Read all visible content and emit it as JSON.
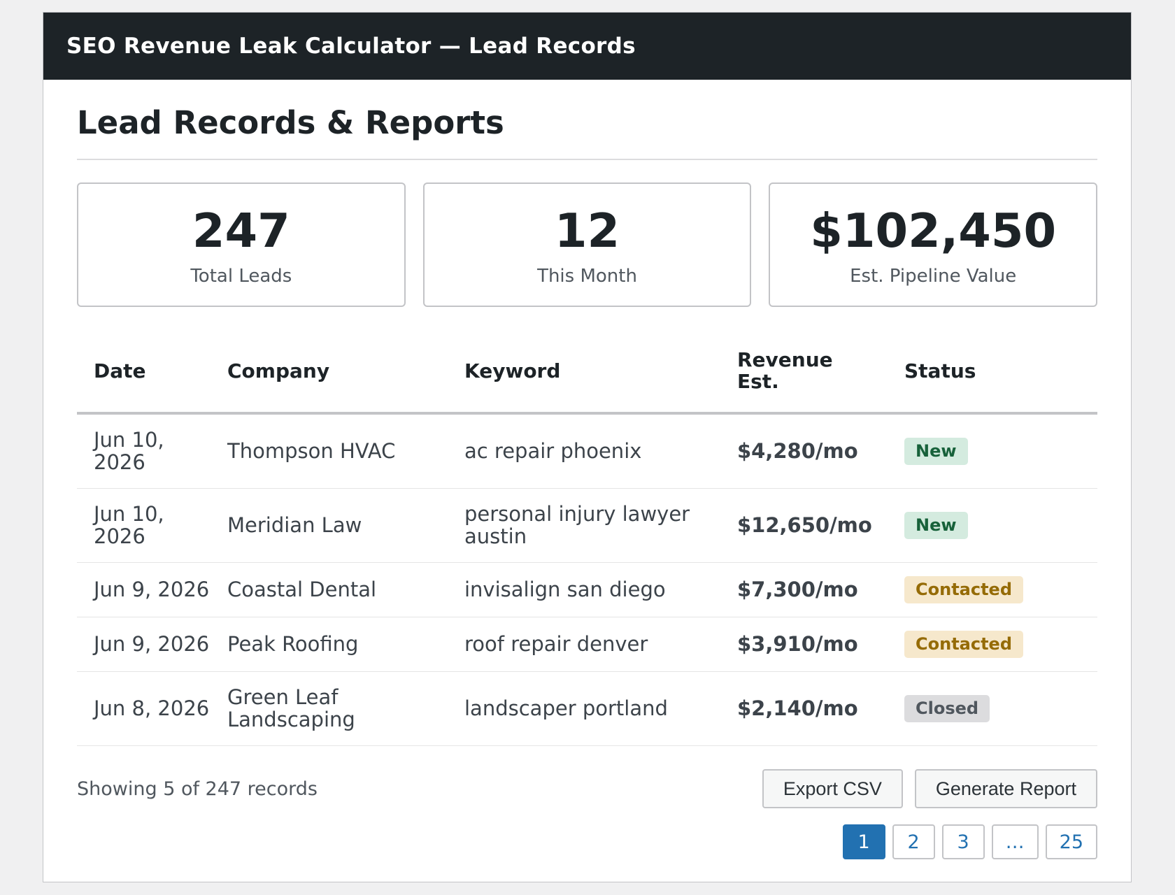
{
  "window": {
    "title": "SEO Revenue Leak Calculator — Lead Records"
  },
  "page": {
    "title": "Lead Records & Reports"
  },
  "stats": [
    {
      "value": "247",
      "label": "Total Leads"
    },
    {
      "value": "12",
      "label": "This Month"
    },
    {
      "value": "$102,450",
      "label": "Est. Pipeline Value"
    }
  ],
  "table": {
    "headers": [
      "Date",
      "Company",
      "Keyword",
      "Revenue Est.",
      "Status"
    ],
    "rows": [
      {
        "date": "Jun 10, 2026",
        "company": "Thompson HVAC",
        "keyword": "ac repair phoenix",
        "revenue": "$4,280/mo",
        "status": "New"
      },
      {
        "date": "Jun 10, 2026",
        "company": "Meridian Law",
        "keyword": "personal injury lawyer austin",
        "revenue": "$12,650/mo",
        "status": "New"
      },
      {
        "date": "Jun 9, 2026",
        "company": "Coastal Dental",
        "keyword": "invisalign san diego",
        "revenue": "$7,300/mo",
        "status": "Contacted"
      },
      {
        "date": "Jun 9, 2026",
        "company": "Peak Roofing",
        "keyword": "roof repair denver",
        "revenue": "$3,910/mo",
        "status": "Contacted"
      },
      {
        "date": "Jun 8, 2026",
        "company": "Green Leaf Landscaping",
        "keyword": "landscaper portland",
        "revenue": "$2,140/mo",
        "status": "Closed"
      }
    ]
  },
  "footer": {
    "showing": "Showing 5 of 247 records",
    "export_label": "Export CSV",
    "report_label": "Generate Report"
  },
  "pagination": {
    "pages": [
      "1",
      "2",
      "3",
      "…",
      "25"
    ],
    "current": "1"
  },
  "colors": {
    "titlebar": "#1d2327",
    "accent": "#2271b1",
    "status_new": "#d4ebdf",
    "status_contacted": "#f6e8cc",
    "status_closed": "#dcdcde"
  }
}
